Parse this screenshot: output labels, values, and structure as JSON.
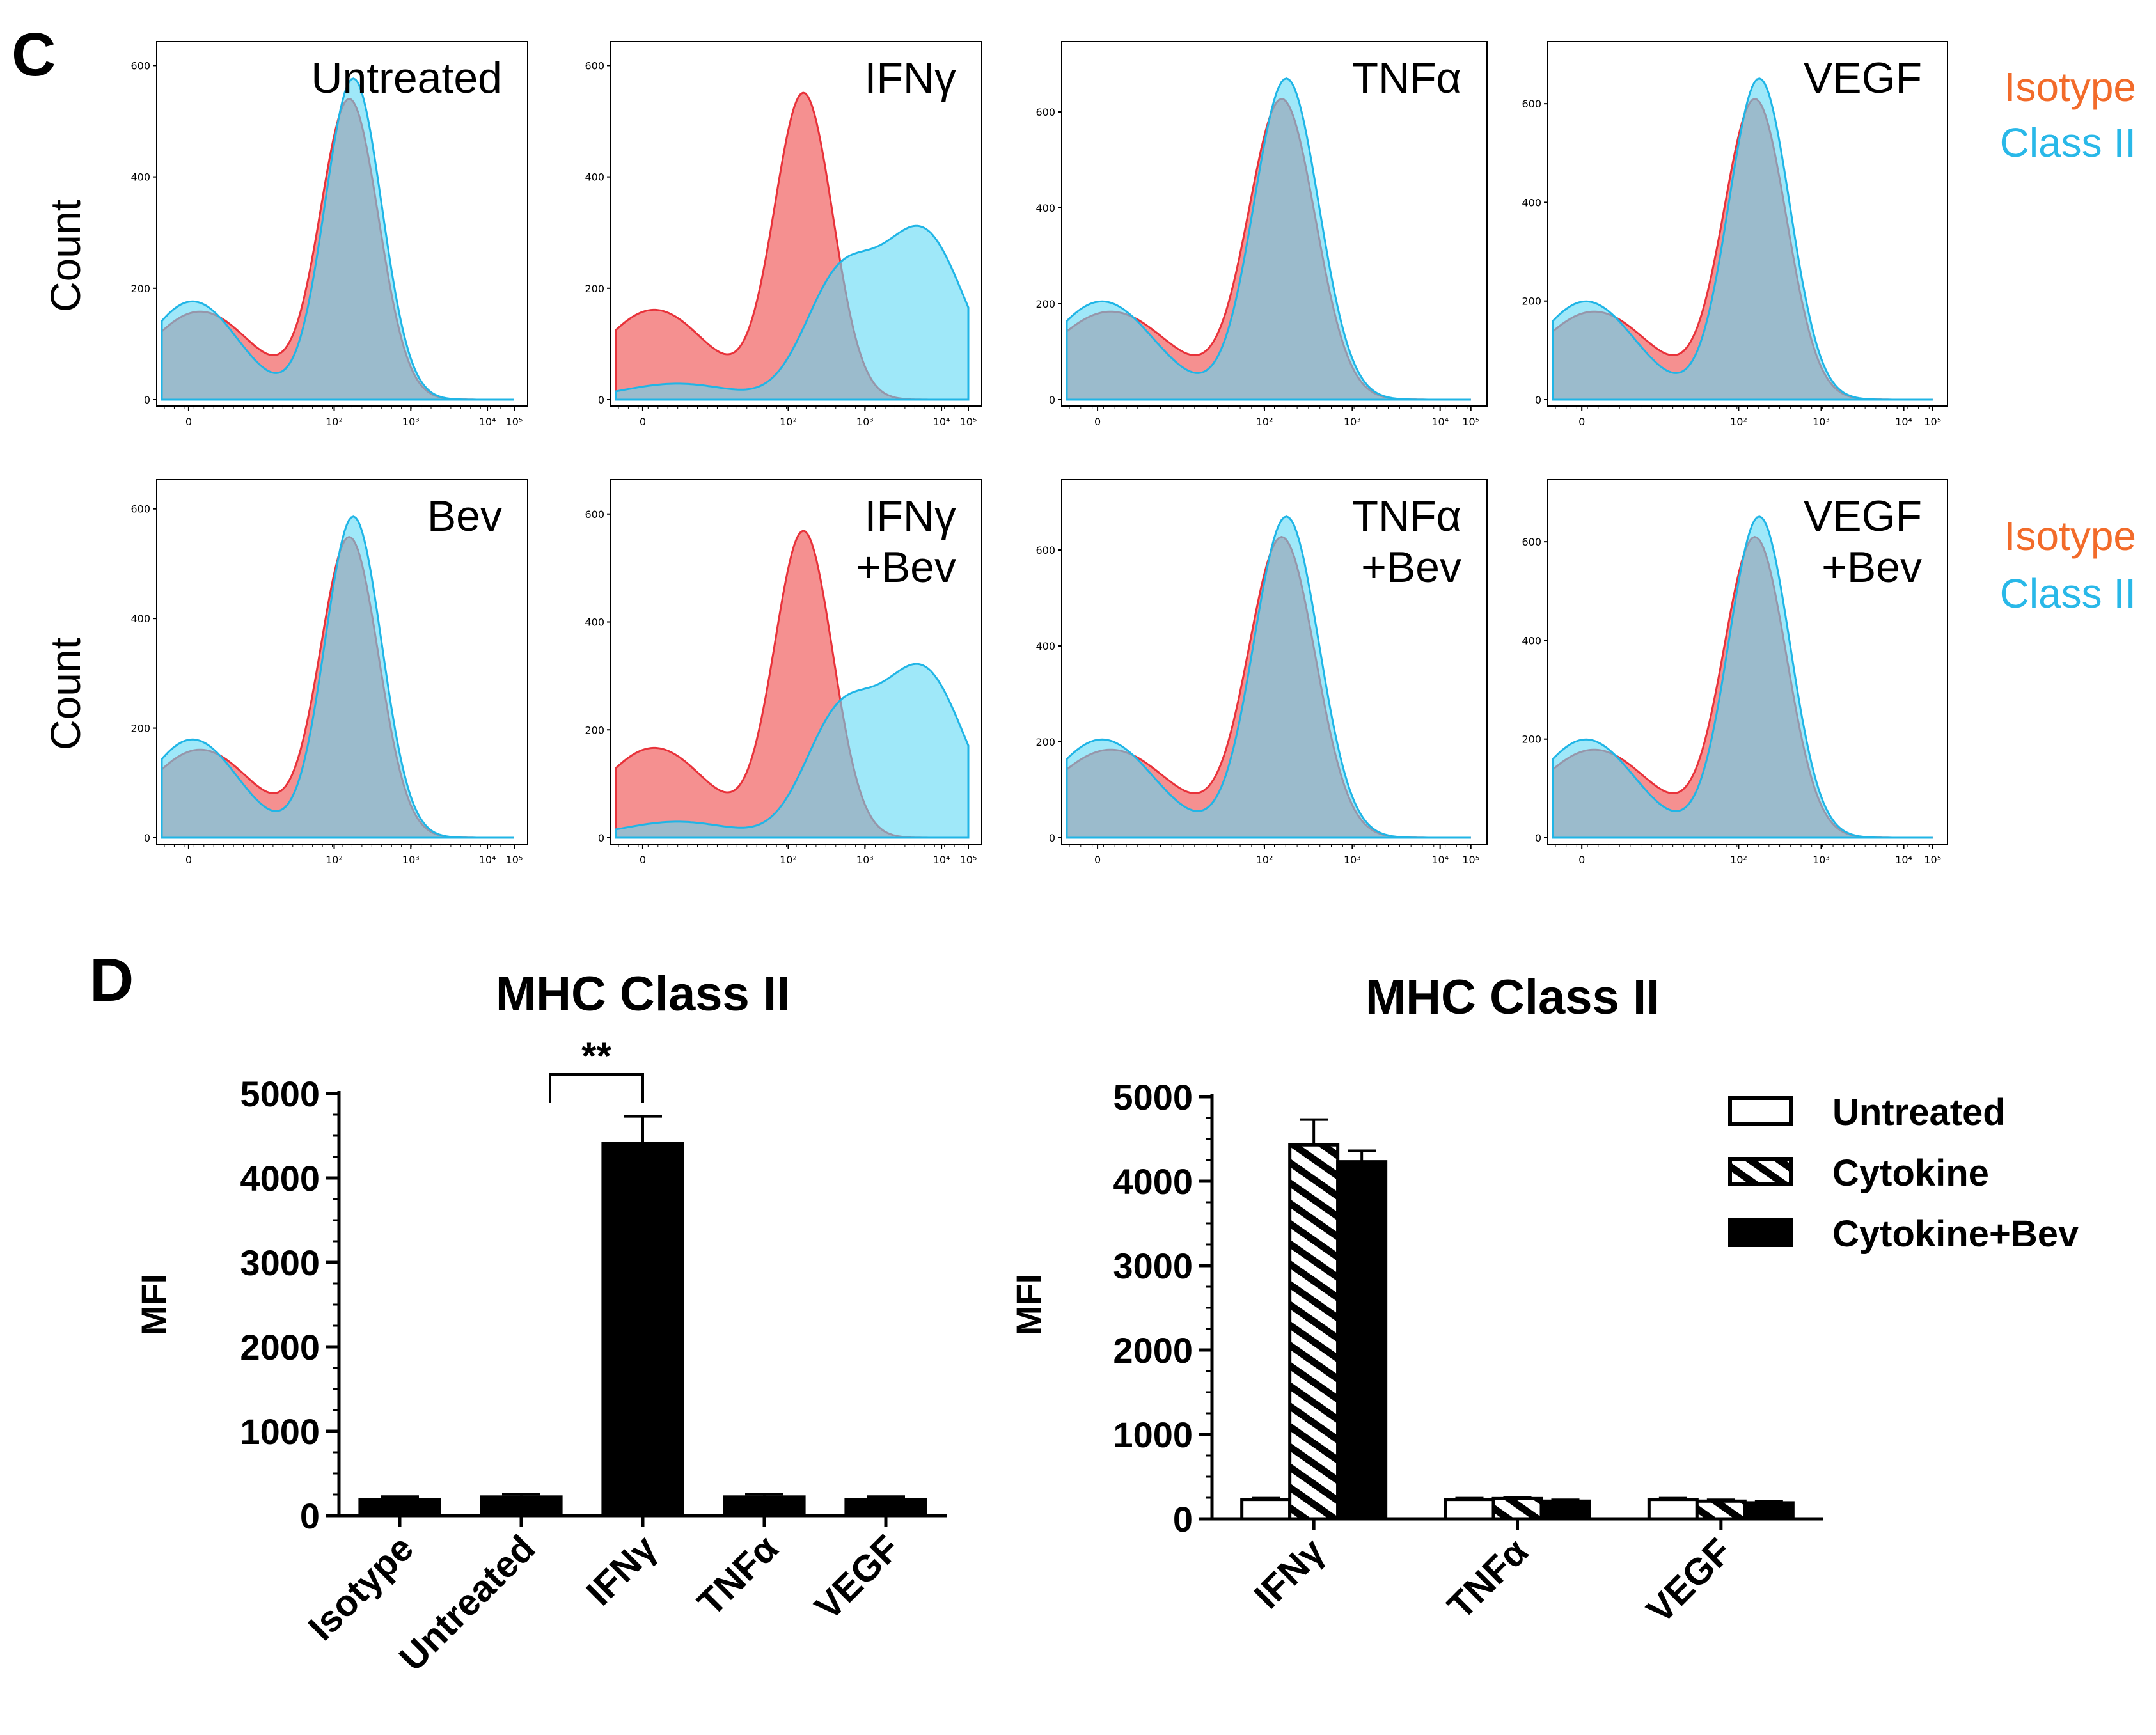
{
  "panel_c": {
    "letter": "C",
    "y_axis_label": "Count",
    "legend": {
      "isotype": "Isotype",
      "class_ii": "Class II"
    },
    "colors": {
      "isotype": "#f26b6b",
      "class_ii": "#5fd8f5",
      "overlap": "#7b95ad",
      "isotype_legend": "#f26b2a",
      "class_ii_legend": "#29b8e8"
    },
    "x_tick_labels": [
      "0",
      "10²",
      "10³",
      "10⁴",
      "10⁵"
    ]
  },
  "panel_d": {
    "letter": "D"
  },
  "chart_data": [
    {
      "type": "histogram",
      "panel": "C",
      "row": 1,
      "title_lines": [
        "Untreated"
      ],
      "ylim": [
        0,
        620
      ],
      "y_ticks": [
        "0",
        "200",
        "400",
        "600"
      ],
      "isotype_peak_x": 100,
      "class_ii_peak_x": 100,
      "class_ii_shifted": false
    },
    {
      "type": "histogram",
      "panel": "C",
      "row": 1,
      "title_lines": [
        "IFNγ"
      ],
      "ylim": [
        0,
        620
      ],
      "y_ticks": [
        "0",
        "200",
        "400",
        "600"
      ],
      "isotype_peak_x": 100,
      "class_ii_peak_x": 5000,
      "class_ii_shifted": true
    },
    {
      "type": "histogram",
      "panel": "C",
      "row": 1,
      "title_lines": [
        "TNFα"
      ],
      "ylim": [
        0,
        720
      ],
      "y_ticks": [
        "0",
        "200",
        "400",
        "600"
      ],
      "isotype_peak_x": 150,
      "class_ii_peak_x": 150,
      "class_ii_shifted": false
    },
    {
      "type": "histogram",
      "panel": "C",
      "row": 1,
      "title_lines": [
        "VEGF"
      ],
      "ylim": [
        0,
        700
      ],
      "y_ticks": [
        "0",
        "200",
        "400",
        "600"
      ],
      "isotype_peak_x": 150,
      "class_ii_peak_x": 150,
      "class_ii_shifted": false
    },
    {
      "type": "histogram",
      "panel": "C",
      "row": 2,
      "title_lines": [
        "Bev"
      ],
      "ylim": [
        0,
        630
      ],
      "y_ticks": [
        "0",
        "200",
        "400",
        "600"
      ],
      "isotype_peak_x": 100,
      "class_ii_peak_x": 100,
      "class_ii_shifted": false
    },
    {
      "type": "histogram",
      "panel": "C",
      "row": 2,
      "title_lines": [
        "IFNγ",
        "+Bev"
      ],
      "ylim": [
        0,
        640
      ],
      "y_ticks": [
        "0",
        "200",
        "400",
        "600"
      ],
      "isotype_peak_x": 100,
      "class_ii_peak_x": 5000,
      "class_ii_shifted": true
    },
    {
      "type": "histogram",
      "panel": "C",
      "row": 2,
      "title_lines": [
        "TNFα",
        "+Bev"
      ],
      "ylim": [
        0,
        720
      ],
      "y_ticks": [
        "0",
        "200",
        "400",
        "600"
      ],
      "isotype_peak_x": 150,
      "class_ii_peak_x": 150,
      "class_ii_shifted": false
    },
    {
      "type": "histogram",
      "panel": "C",
      "row": 2,
      "title_lines": [
        "VEGF",
        "+Bev"
      ],
      "ylim": [
        0,
        700
      ],
      "y_ticks": [
        "0",
        "200",
        "400",
        "600"
      ],
      "isotype_peak_x": 150,
      "class_ii_peak_x": 150,
      "class_ii_shifted": false
    },
    {
      "type": "bar",
      "panel": "D",
      "title": "MHC Class II",
      "ylabel": "MFI",
      "ylim": [
        0,
        5000
      ],
      "y_ticks": [
        "0",
        "1000",
        "2000",
        "3000",
        "4000",
        "5000"
      ],
      "categories": [
        "Isotype",
        "Untreated",
        "IFNγ",
        "TNFα",
        "VEGF"
      ],
      "values": [
        210,
        240,
        4430,
        240,
        210
      ],
      "errors": [
        15,
        15,
        300,
        15,
        15
      ],
      "significance": {
        "from": "Untreated",
        "to": "IFNγ",
        "label": "**"
      }
    },
    {
      "type": "bar",
      "panel": "D",
      "title": "MHC Class II",
      "ylabel": "MFI",
      "ylim": [
        0,
        5000
      ],
      "y_ticks": [
        "0",
        "1000",
        "2000",
        "3000",
        "4000",
        "5000"
      ],
      "categories": [
        "IFNγ",
        "TNFα",
        "VEGF"
      ],
      "series": [
        {
          "name": "Untreated",
          "values": [
            230,
            230,
            230
          ],
          "errors": [
            15,
            15,
            15
          ]
        },
        {
          "name": "Cytokine",
          "values": [
            4430,
            240,
            210
          ],
          "errors": [
            300,
            15,
            15
          ]
        },
        {
          "name": "Cytokine+Bev",
          "values": [
            4230,
            210,
            190
          ],
          "errors": [
            130,
            15,
            15
          ]
        }
      ]
    }
  ]
}
